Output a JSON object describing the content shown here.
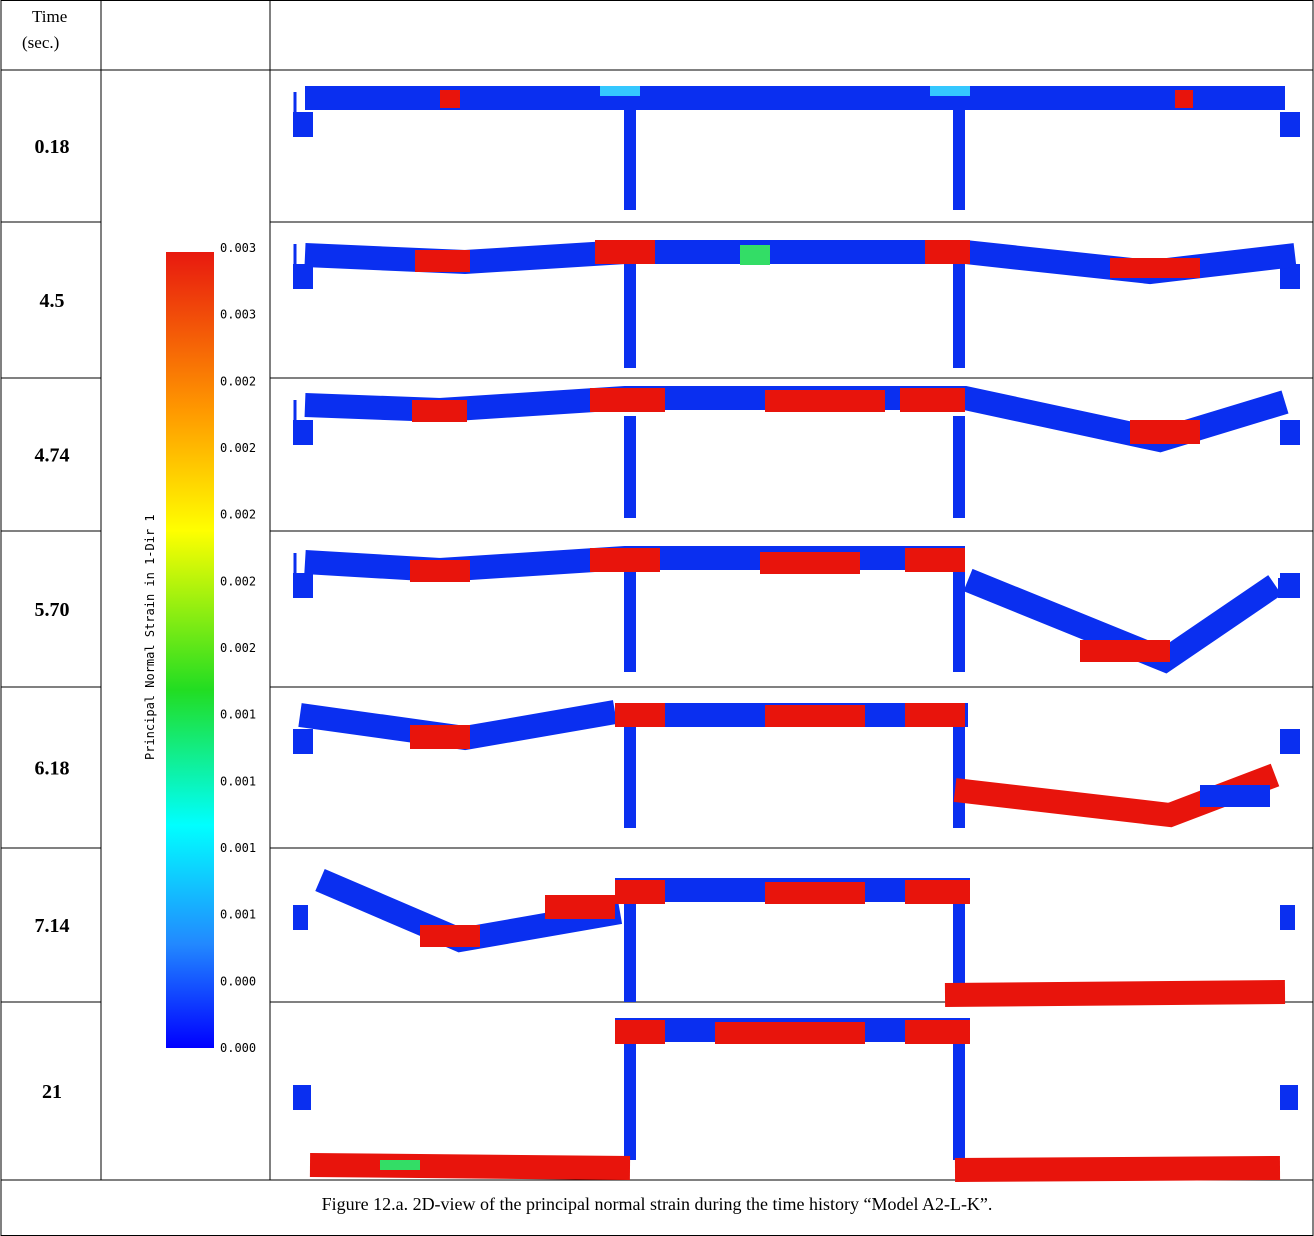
{
  "header": {
    "time": "Time",
    "unit": "(sec.)"
  },
  "rows": [
    {
      "time": "0.18"
    },
    {
      "time": "4.5"
    },
    {
      "time": "4.74"
    },
    {
      "time": "5.70"
    },
    {
      "time": "6.18"
    },
    {
      "time": "7.14"
    },
    {
      "time": "21"
    }
  ],
  "legend": {
    "title": "Principal Normal Strain in 1-Dir 1",
    "labels": [
      "0.003",
      "0.003",
      "0.002",
      "0.002",
      "0.002",
      "0.002",
      "0.002",
      "0.001",
      "0.001",
      "0.001",
      "0.001",
      "0.000",
      "0.000"
    ]
  },
  "caption": "Figure 12.a. 2D-view of the principal normal strain during the time history “Model A2-L-K”."
}
